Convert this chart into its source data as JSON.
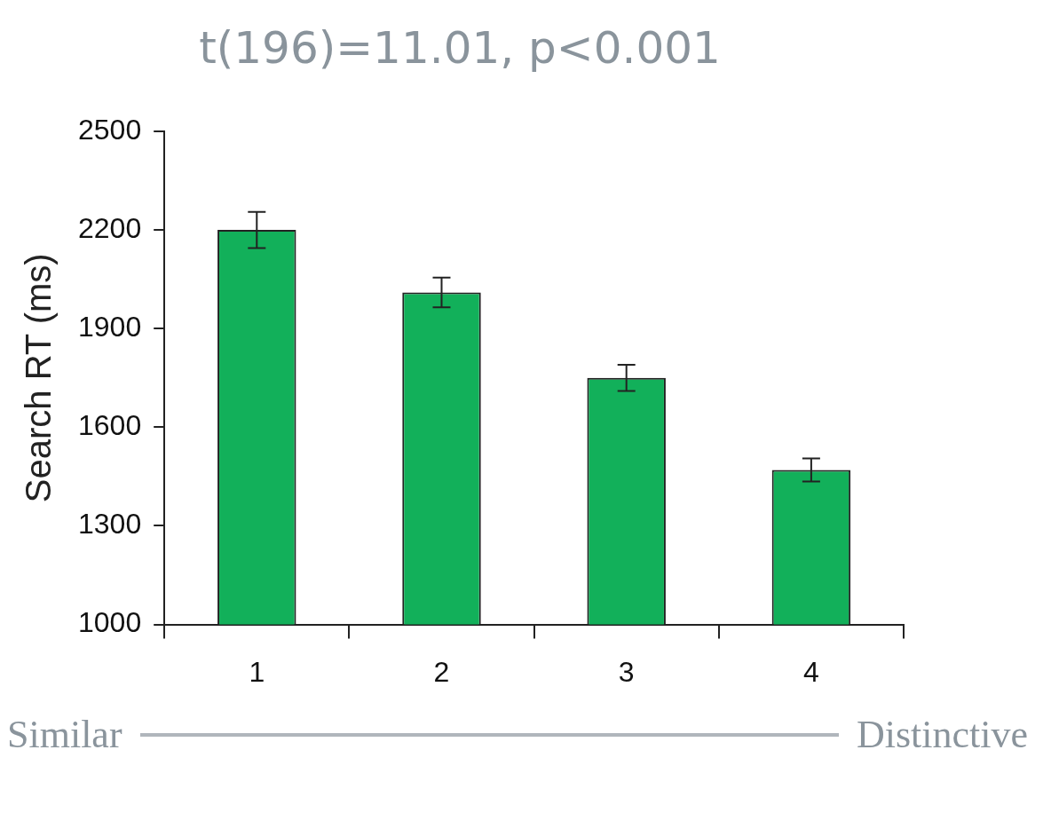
{
  "chart_data": {
    "type": "bar",
    "title": "t(196)=11.01, p<0.001",
    "ylabel": "Search RT (ms)",
    "categories": [
      "1",
      "2",
      "3",
      "4"
    ],
    "values": [
      2200,
      2010,
      1750,
      1470
    ],
    "errors": [
      55,
      45,
      40,
      35
    ],
    "color": "#12b05a",
    "ylim": [
      1000,
      2500
    ],
    "yticks": [
      1000,
      1300,
      1600,
      1900,
      2200,
      2500
    ],
    "grid": false,
    "legend": false,
    "annotations": [
      "Similar",
      "Distinctive"
    ]
  }
}
